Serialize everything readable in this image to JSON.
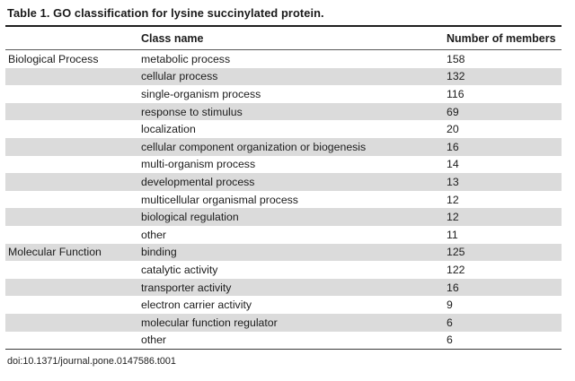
{
  "page": {
    "title": "Table 1. GO classification for lysine succinylated protein.",
    "footer_doi": "doi:10.1371/journal.pone.0147586.t001"
  },
  "table": {
    "headers": {
      "group": "",
      "class_name": "Class name",
      "members": "Number of members"
    },
    "groups": [
      {
        "name": "Biological Process",
        "rows": [
          {
            "class_name": "metabolic process",
            "members": "158"
          },
          {
            "class_name": "cellular process",
            "members": "132"
          },
          {
            "class_name": "single-organism process",
            "members": "116"
          },
          {
            "class_name": "response to stimulus",
            "members": "69"
          },
          {
            "class_name": "localization",
            "members": "20"
          },
          {
            "class_name": "cellular component organization or biogenesis",
            "members": "16"
          },
          {
            "class_name": "multi-organism process",
            "members": "14"
          },
          {
            "class_name": "developmental process",
            "members": "13"
          },
          {
            "class_name": "multicellular organismal process",
            "members": "12"
          },
          {
            "class_name": "biological regulation",
            "members": "12"
          },
          {
            "class_name": "other",
            "members": "11"
          }
        ]
      },
      {
        "name": "Molecular Function",
        "rows": [
          {
            "class_name": "binding",
            "members": "125"
          },
          {
            "class_name": "catalytic activity",
            "members": "122"
          },
          {
            "class_name": "transporter activity",
            "members": "16"
          },
          {
            "class_name": "electron carrier activity",
            "members": "9"
          },
          {
            "class_name": "molecular function regulator",
            "members": "6"
          },
          {
            "class_name": "other",
            "members": "6"
          }
        ]
      }
    ]
  },
  "colors": {
    "stripe": "#dbdbdb",
    "text": "#1c1c1c"
  }
}
